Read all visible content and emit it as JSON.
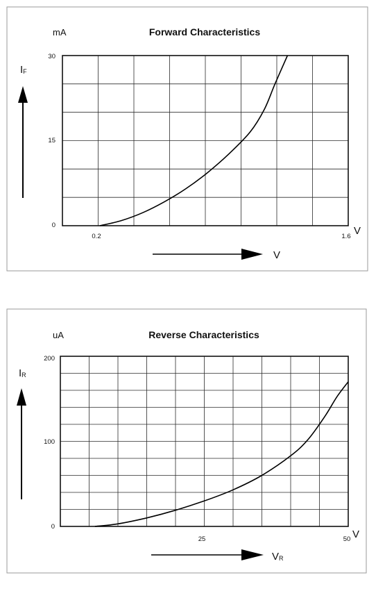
{
  "chart_data": [
    {
      "type": "line",
      "title": "Forward Characteristics",
      "y_unit": "mA",
      "x_unit": "V",
      "y_axis_symbol": "I",
      "y_axis_subscript": "F",
      "x_arrow_label": "V",
      "x_tick_labels": [
        "0.2",
        "1.6"
      ],
      "y_tick_labels": [
        "30",
        "15",
        "0"
      ],
      "xlim": [
        0.0,
        1.6
      ],
      "ylim": [
        0,
        30
      ],
      "grid": true,
      "series": [
        {
          "x": [
            0.21,
            0.33,
            0.45,
            0.57,
            0.69,
            0.81,
            0.93,
            1.05,
            1.13,
            1.19,
            1.26
          ],
          "y": [
            0.0,
            0.9,
            2.3,
            4.2,
            6.5,
            9.3,
            12.6,
            16.5,
            20.5,
            25.0,
            30.0
          ]
        }
      ]
    },
    {
      "type": "line",
      "title": "Reverse Characteristics",
      "y_unit": "uA",
      "x_unit": "V",
      "y_axis_symbol": "I",
      "y_axis_subscript": "R",
      "x_arrow_label": "V",
      "x_arrow_subscript": "R",
      "x_tick_labels": [
        "25",
        "50"
      ],
      "y_tick_labels": [
        "200",
        "100",
        "0"
      ],
      "xlim": [
        0,
        50
      ],
      "ylim": [
        0,
        200
      ],
      "grid": true,
      "series": [
        {
          "x": [
            6,
            10,
            15,
            20,
            25,
            30,
            35,
            40,
            43,
            46,
            48,
            50
          ],
          "y": [
            0,
            3,
            10,
            19,
            30,
            43,
            60,
            83,
            102,
            130,
            152,
            170
          ]
        }
      ]
    }
  ]
}
